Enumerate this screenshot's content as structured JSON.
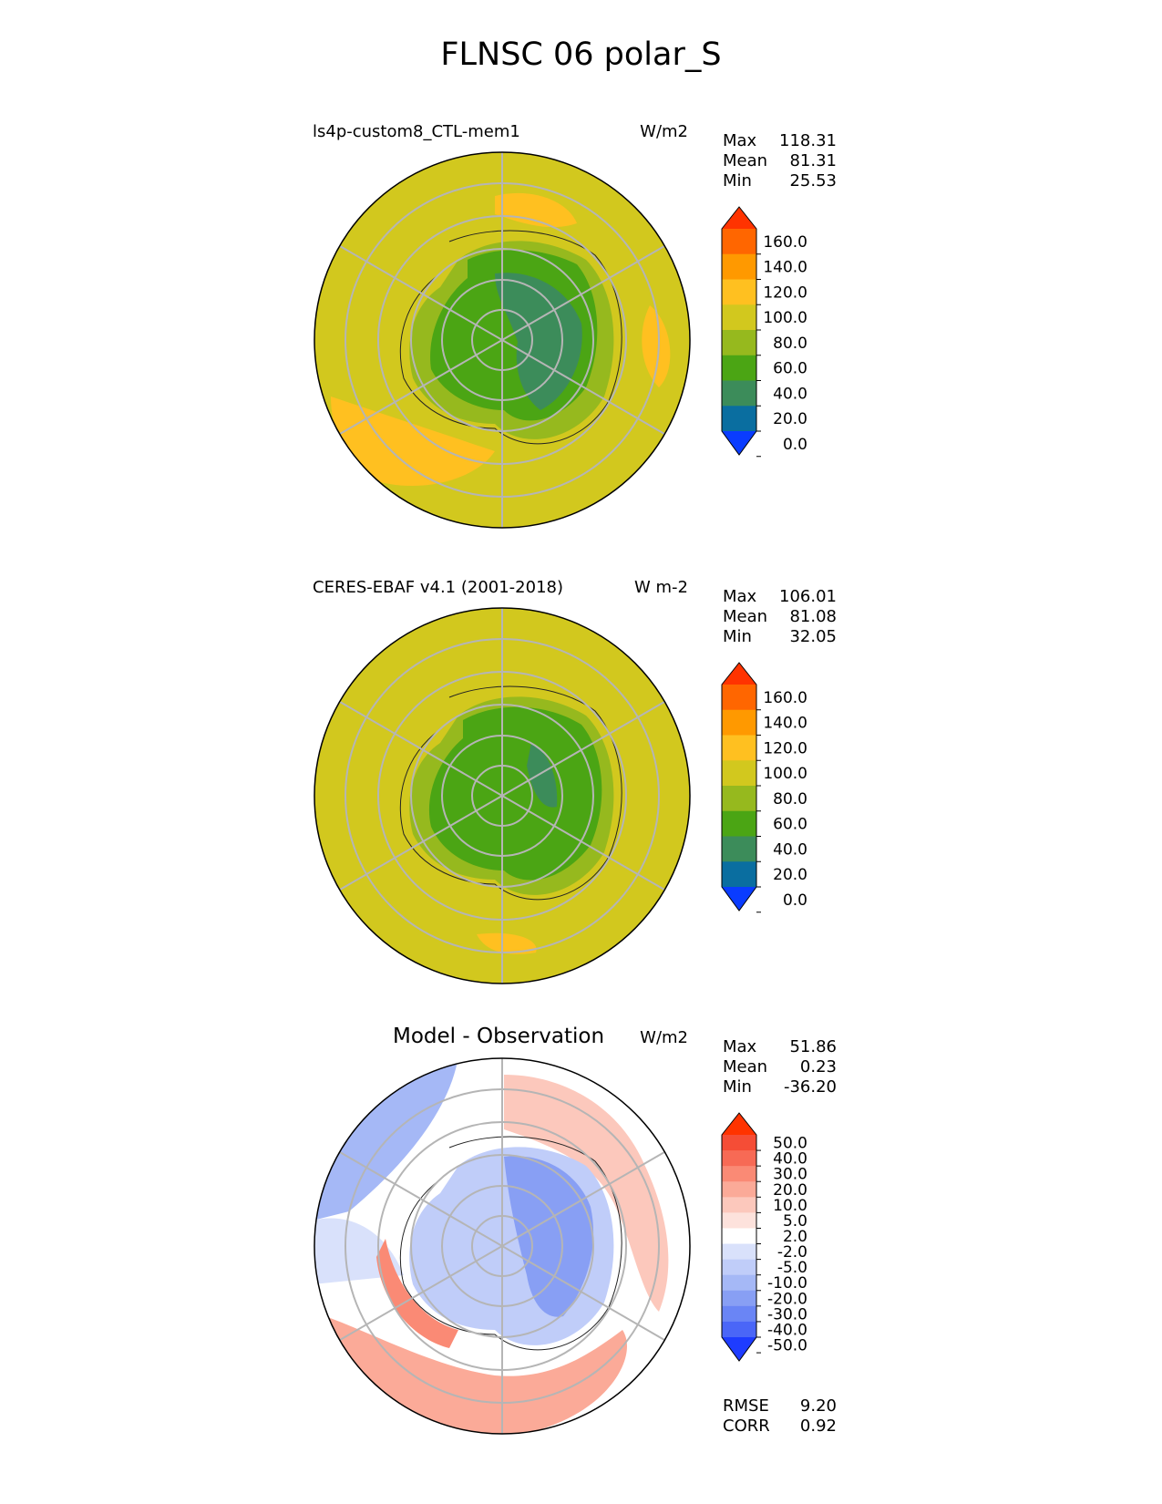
{
  "figure": {
    "title": "FLNSC 06 polar_S"
  },
  "panels": [
    {
      "id": "model",
      "left_label": "ls4p-custom8_CTL-mem1",
      "center_title": "",
      "units": "W/m2",
      "stats": [
        {
          "label": "Max",
          "value": "118.31"
        },
        {
          "label": "Mean",
          "value": "81.31"
        },
        {
          "label": "Min",
          "value": "25.53"
        }
      ],
      "colorbar": {
        "tick_labels": [
          "160.0",
          "140.0",
          "120.0",
          "100.0",
          "80.0",
          "60.0",
          "40.0",
          "20.0",
          "0.0"
        ],
        "colors_top_to_bottom": [
          "#ff3300",
          "#ff6600",
          "#ff9900",
          "#ffc020",
          "#d2c81e",
          "#96b91e",
          "#4ba514",
          "#3c8c5a",
          "#0a6ea0",
          "#0a3cff"
        ]
      }
    },
    {
      "id": "observation",
      "left_label": "CERES-EBAF v4.1 (2001-2018)",
      "center_title": "",
      "units": "W m-2",
      "stats": [
        {
          "label": "Max",
          "value": "106.01"
        },
        {
          "label": "Mean",
          "value": "81.08"
        },
        {
          "label": "Min",
          "value": "32.05"
        }
      ],
      "colorbar": {
        "tick_labels": [
          "160.0",
          "140.0",
          "120.0",
          "100.0",
          "80.0",
          "60.0",
          "40.0",
          "20.0",
          "0.0"
        ],
        "colors_top_to_bottom": [
          "#ff3300",
          "#ff6600",
          "#ff9900",
          "#ffc020",
          "#d2c81e",
          "#96b91e",
          "#4ba514",
          "#3c8c5a",
          "#0a6ea0",
          "#0a3cff"
        ]
      }
    },
    {
      "id": "difference",
      "left_label": "",
      "center_title": "Model - Observation",
      "units": "W/m2",
      "stats": [
        {
          "label": "Max",
          "value": "51.86"
        },
        {
          "label": "Mean",
          "value": "0.23"
        },
        {
          "label": "Min",
          "value": "-36.20"
        }
      ],
      "colorbar": {
        "tick_labels": [
          "50.0",
          "40.0",
          "30.0",
          "20.0",
          "10.0",
          "5.0",
          "2.0",
          "-2.0",
          "-5.0",
          "-10.0",
          "-20.0",
          "-30.0",
          "-40.0",
          "-50.0"
        ],
        "colors_top_to_bottom": [
          "#ff3300",
          "#f54d36",
          "#f76a55",
          "#fa8a75",
          "#fbaa98",
          "#fcc8bc",
          "#fde2dc",
          "#ffffff",
          "#d9e1fb",
          "#c0cdf9",
          "#a5b8f6",
          "#889ff4",
          "#6a85f5",
          "#4a66f7",
          "#1e3cff"
        ]
      },
      "extra_stats": [
        {
          "label": "RMSE",
          "value": "9.20"
        },
        {
          "label": "CORR",
          "value": "0.92"
        }
      ]
    }
  ]
}
